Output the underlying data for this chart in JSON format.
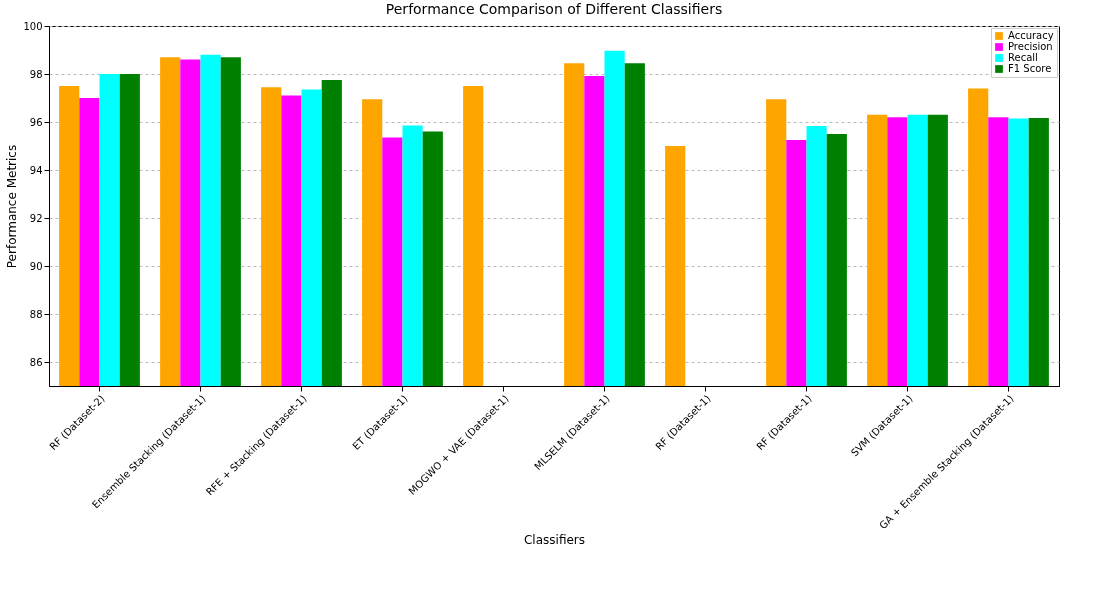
{
  "chart_data": {
    "type": "bar",
    "title": "Performance Comparison of Different Classifiers",
    "xlabel": "Classifiers",
    "ylabel": "Performance Metrics",
    "categories": [
      "RF (Dataset-2)",
      "Ensemble Stacking (Dataset-1)",
      "RFE + Stacking (Dataset-1)",
      "ET (Dataset-1)",
      "MOGWO + VAE (Dataset-1)",
      "MLSELM (Dataset-1)",
      "RF (Dataset-1)",
      "RF (Dataset-1)",
      "SVM (Dataset-1)",
      "GA + Ensemble Stacking (Dataset-1)"
    ],
    "series": [
      {
        "name": "Accuracy",
        "color": "#ffa500",
        "values": [
          97.5,
          98.7,
          97.45,
          96.95,
          97.5,
          98.45,
          95.0,
          96.95,
          96.3,
          97.4
        ]
      },
      {
        "name": "Precision",
        "color": "#ff00ff",
        "values": [
          97.0,
          98.6,
          97.1,
          95.35,
          null,
          97.92,
          null,
          95.25,
          96.2,
          96.2
        ]
      },
      {
        "name": "Recall",
        "color": "#00ffff",
        "values": [
          98.0,
          98.8,
          97.35,
          95.85,
          null,
          98.97,
          null,
          95.83,
          96.3,
          96.15
        ]
      },
      {
        "name": "F1 Score",
        "color": "#008000",
        "values": [
          98.0,
          98.7,
          97.75,
          95.6,
          null,
          98.45,
          null,
          95.5,
          96.3,
          96.17
        ]
      }
    ],
    "ylim": [
      85,
      100
    ],
    "yticks": [
      86,
      88,
      90,
      92,
      94,
      96,
      98,
      100
    ],
    "grid": "y",
    "legend": "top right"
  }
}
